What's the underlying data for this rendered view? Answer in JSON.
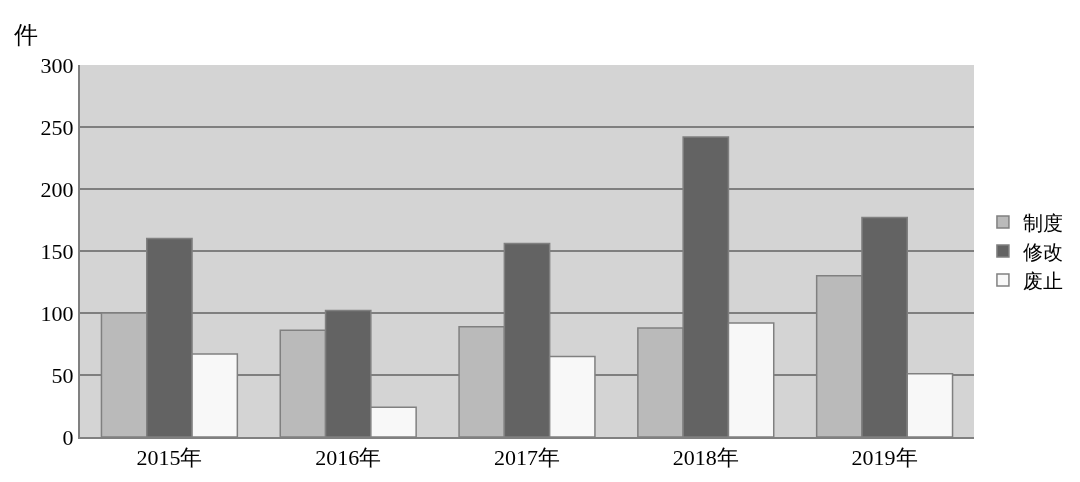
{
  "chart_data": {
    "type": "bar",
    "ylabel": "件",
    "categories": [
      "2015年",
      "2016年",
      "2017年",
      "2018年",
      "2019年"
    ],
    "series": [
      {
        "name": "制度",
        "color": "#bababa",
        "values": [
          100,
          86,
          89,
          88,
          130
        ]
      },
      {
        "name": "修改",
        "color": "#636363",
        "values": [
          160,
          102,
          156,
          242,
          177
        ]
      },
      {
        "name": "废止",
        "color": "#f8f8f8",
        "values": [
          67,
          24,
          65,
          92,
          51
        ]
      }
    ],
    "ylim": [
      0,
      300
    ],
    "yticks": [
      0,
      50,
      100,
      150,
      200,
      250,
      300
    ],
    "grid": "y",
    "legend": "right"
  }
}
